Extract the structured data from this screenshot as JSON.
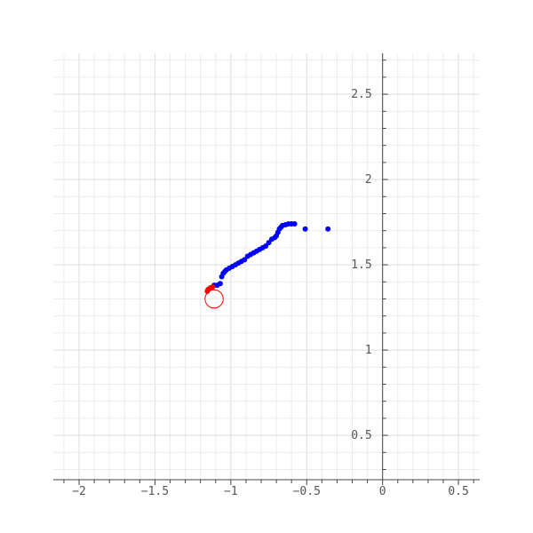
{
  "chart_data": {
    "type": "scatter",
    "title": "",
    "xlabel": "",
    "ylabel": "",
    "xlim": [
      -2.17,
      0.64
    ],
    "ylim": [
      0.24,
      2.74
    ],
    "grid": true,
    "x_ticks": [
      {
        "value": -2,
        "label": "−2"
      },
      {
        "value": -1.5,
        "label": "−1.5"
      },
      {
        "value": -1,
        "label": "−1"
      },
      {
        "value": -0.5,
        "label": "−0.5"
      },
      {
        "value": 0,
        "label": "0"
      },
      {
        "value": 0.5,
        "label": "0.5"
      }
    ],
    "y_ticks": [
      {
        "value": 0.5,
        "label": "0.5"
      },
      {
        "value": 1,
        "label": "1"
      },
      {
        "value": 1.5,
        "label": "1.5"
      },
      {
        "value": 2,
        "label": "2"
      },
      {
        "value": 2.5,
        "label": "2.5"
      }
    ],
    "series": [
      {
        "color": "#0000ff",
        "x": [
          -0.36,
          -0.51,
          -0.58,
          -0.6,
          -0.62,
          -0.64,
          -0.66,
          -0.67,
          -0.68,
          -0.69,
          -0.7,
          -0.71,
          -0.73,
          -0.75,
          -0.77,
          -0.79,
          -0.81,
          -0.83,
          -0.85,
          -0.87,
          -0.89,
          -0.91,
          -0.93,
          -0.95,
          -0.97,
          -0.99,
          -1.01,
          -1.03,
          -1.04,
          -1.05,
          -1.06,
          -1.07,
          -1.09,
          -1.11
        ],
        "y": [
          1.71,
          1.71,
          1.74,
          1.74,
          1.74,
          1.735,
          1.73,
          1.72,
          1.71,
          1.69,
          1.67,
          1.66,
          1.65,
          1.63,
          1.61,
          1.6,
          1.59,
          1.58,
          1.57,
          1.56,
          1.55,
          1.53,
          1.52,
          1.51,
          1.5,
          1.49,
          1.48,
          1.47,
          1.46,
          1.45,
          1.43,
          1.39,
          1.38,
          1.38
        ]
      },
      {
        "color": "#ff0000",
        "x": [
          -1.12,
          -1.135,
          -1.15,
          -1.155
        ],
        "y": [
          1.37,
          1.365,
          1.355,
          1.345
        ]
      }
    ],
    "annotations": [
      {
        "shape": "circle",
        "color": "#ff0000",
        "x": -1.11,
        "y": 1.3,
        "radius": 0.06
      }
    ]
  }
}
